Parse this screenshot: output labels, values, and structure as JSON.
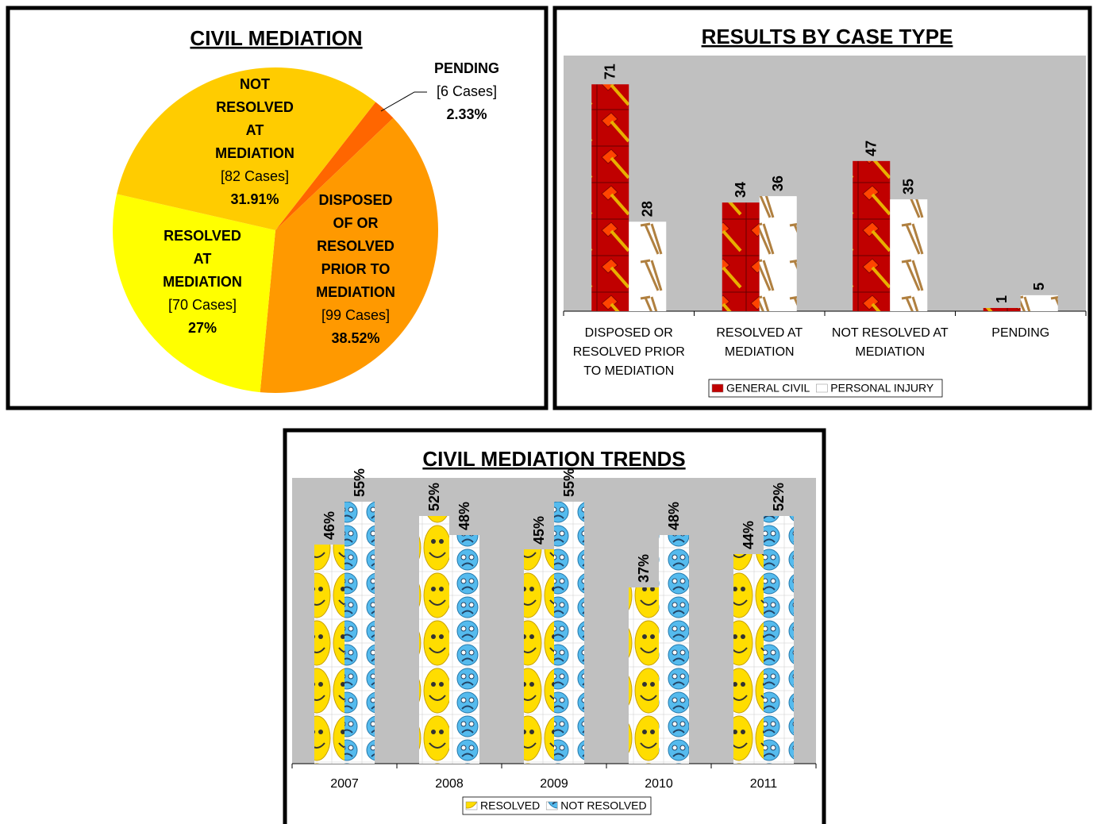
{
  "chart_data": [
    {
      "type": "pie",
      "title": "CIVIL MEDIATION",
      "categories": [
        "PENDING",
        "DISPOSED OF OR RESOLVED PRIOR TO MEDIATION",
        "RESOLVED AT MEDIATION",
        "NOT RESOLVED AT MEDIATION"
      ],
      "values": [
        2.33,
        38.52,
        27,
        31.91
      ],
      "value_labels": [
        "2.33%",
        "38.52%",
        "27%",
        "31.91%"
      ],
      "case_labels": [
        "[6 Cases]",
        "[99 Cases]",
        "[70 Cases]",
        "[82 Cases]"
      ],
      "colors": [
        "#ff6600",
        "#ff9900",
        "#ffff00",
        "#ffcc00"
      ]
    },
    {
      "type": "bar",
      "title": "RESULTS BY CASE TYPE",
      "categories": [
        "DISPOSED OR RESOLVED PRIOR TO MEDIATION",
        "RESOLVED AT MEDIATION",
        "NOT RESOLVED AT MEDIATION",
        "PENDING"
      ],
      "series": [
        {
          "name": "GENERAL CIVIL",
          "color": "#c00000",
          "values": [
            71,
            34,
            47,
            1
          ]
        },
        {
          "name": "PERSONAL INJURY",
          "color": "#ffffff",
          "values": [
            28,
            36,
            35,
            5
          ]
        }
      ],
      "ylim": [
        0,
        80
      ],
      "legend": "bottom"
    },
    {
      "type": "bar",
      "title": "CIVIL MEDIATION TRENDS",
      "categories": [
        "2007",
        "2008",
        "2009",
        "2010",
        "2011"
      ],
      "series": [
        {
          "name": "RESOLVED",
          "color": "#ffdd00",
          "values": [
            46,
            52,
            45,
            37,
            44
          ],
          "value_labels": [
            "46%",
            "52%",
            "45%",
            "37%",
            "44%"
          ]
        },
        {
          "name": "NOT RESOLVED",
          "color": "#55bbee",
          "values": [
            55,
            48,
            55,
            48,
            52
          ],
          "value_labels": [
            "55%",
            "48%",
            "55%",
            "48%",
            "52%"
          ]
        }
      ],
      "ylim": [
        0,
        60
      ],
      "legend": "bottom"
    }
  ]
}
